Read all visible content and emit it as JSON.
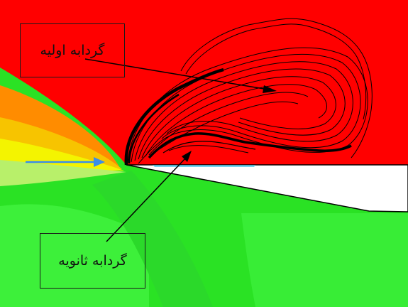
{
  "labels": {
    "primary_vortex": "گردابه اولیه",
    "secondary_vortex": "گردابه ثانویه"
  },
  "colors": {
    "red_region": "#ff0000",
    "green_region": "#22e619",
    "light_green_region": "#3ff53a",
    "yellow_region": "#f4f400",
    "orange_region": "#ff8a00",
    "wing_body": "#ffffff",
    "contour_lines": "#000000",
    "flow_arrow": "#3b8ee8"
  }
}
